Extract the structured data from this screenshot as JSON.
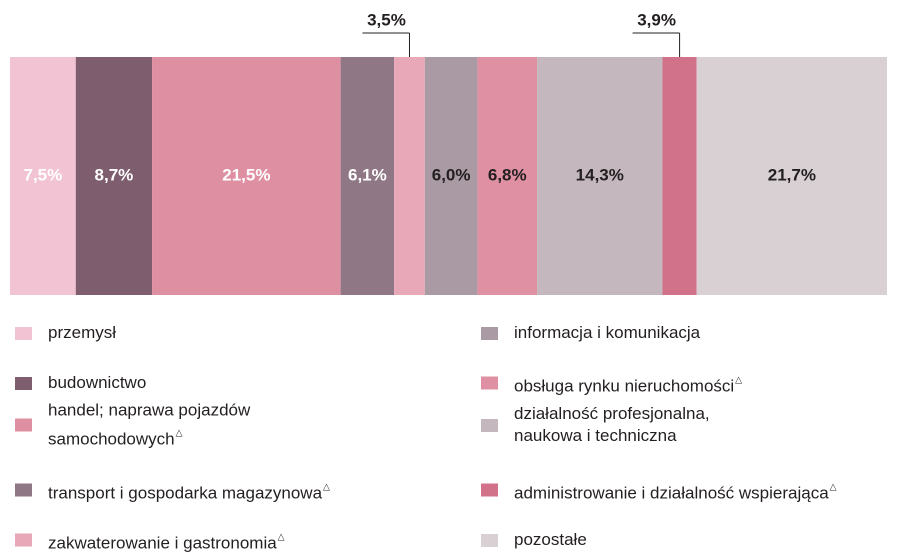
{
  "chart_data": {
    "type": "stacked-bar-100",
    "legend_mark": "△",
    "series": [
      {
        "name": "przemysł",
        "color": "#f2c4d3",
        "values": [
          7.5
        ],
        "value_labels": [
          "7,5%"
        ],
        "label_color": "#ffffff",
        "label_position": "inside",
        "marked": false
      },
      {
        "name": "budownictwo",
        "color": "#7e5d6e",
        "values": [
          8.7
        ],
        "value_labels": [
          "8,7%"
        ],
        "label_color": "#ffffff",
        "label_position": "inside",
        "marked": false
      },
      {
        "name": "handel; naprawa pojazdów\nsamochodowych",
        "color": "#de8fa2",
        "values": [
          21.5
        ],
        "value_labels": [
          "21,5%"
        ],
        "label_color": "#ffffff",
        "label_position": "inside",
        "marked": true
      },
      {
        "name": "transport i gospodarka magazynowa",
        "color": "#8f7785",
        "values": [
          6.1
        ],
        "value_labels": [
          "6,1%"
        ],
        "label_color": "#ffffff",
        "label_position": "inside",
        "marked": true
      },
      {
        "name": "zakwaterowanie i gastronomia",
        "color": "#e8a8b8",
        "values": [
          3.5
        ],
        "value_labels": [
          "3,5%"
        ],
        "label_color": "#231f20",
        "label_position": "above",
        "marked": true
      },
      {
        "name": "informacja i komunikacja",
        "color": "#a99aa3",
        "values": [
          6.0
        ],
        "value_labels": [
          "6,0%"
        ],
        "label_color": "#231f20",
        "label_position": "inside",
        "marked": false
      },
      {
        "name": "obsługa rynku nieruchomości",
        "color": "#df90a3",
        "values": [
          6.8
        ],
        "value_labels": [
          "6,8%"
        ],
        "label_color": "#231f20",
        "label_position": "inside",
        "marked": true
      },
      {
        "name": "działalność profesjonalna,\nnaukowa i techniczna",
        "color": "#c4b7bd",
        "values": [
          14.3
        ],
        "value_labels": [
          "14,3%"
        ],
        "label_color": "#231f20",
        "label_position": "inside",
        "marked": false
      },
      {
        "name": "administrowanie i działalność wspierająca",
        "color": "#d2728a",
        "values": [
          3.9
        ],
        "value_labels": [
          "3,9%"
        ],
        "label_color": "#231f20",
        "label_position": "above",
        "marked": true
      },
      {
        "name": "pozostałe",
        "color": "#d8d0d3",
        "values": [
          21.7
        ],
        "value_labels": [
          "21,7%"
        ],
        "label_color": "#231f20",
        "label_position": "inside",
        "marked": false
      }
    ]
  }
}
